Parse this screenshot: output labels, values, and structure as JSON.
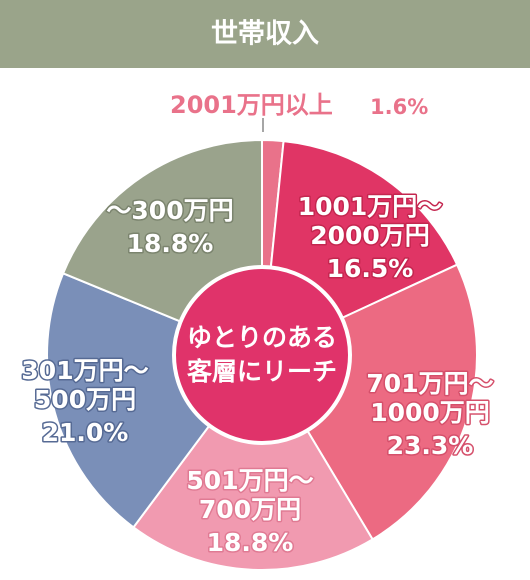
{
  "chart_data": {
    "type": "pie",
    "title": "世帯収入",
    "categories": [
      "2001万円以上",
      "1001万円〜2000万円",
      "701万円〜1000万円",
      "501万円〜700万円",
      "301万円〜500万円",
      "〜300万円"
    ],
    "values": [
      1.6,
      16.5,
      23.3,
      18.8,
      21.0,
      18.8
    ],
    "value_labels": [
      "1.6%",
      "16.5%",
      "23.3%",
      "18.8%",
      "21.0%",
      "18.8%"
    ],
    "colors": [
      "#e9728a",
      "#e03565",
      "#ec6a82",
      "#f19ab0",
      "#7a8fb8",
      "#9aa38c"
    ],
    "center_label": [
      "ゆとりのある",
      "客層にリーチ"
    ]
  }
}
